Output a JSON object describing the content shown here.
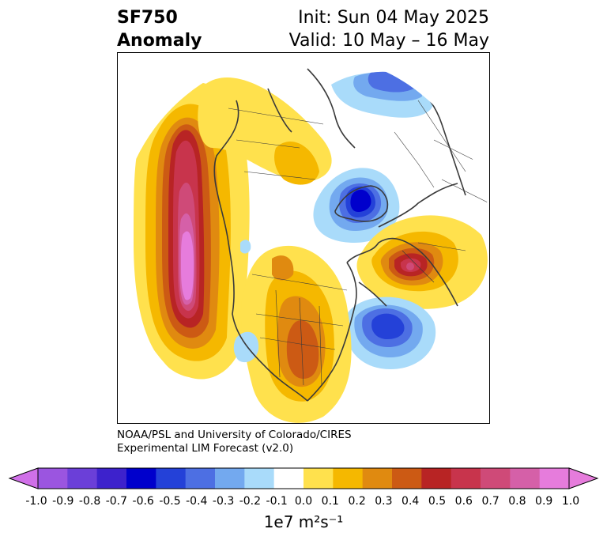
{
  "title": {
    "line1": "SF750",
    "line2": "Anomaly"
  },
  "header_right": {
    "init": "Init: Sun 04 May 2025",
    "valid": "Valid: 10 May – 16 May"
  },
  "credit": {
    "line1": "NOAA/PSL and University of Colorado/CIRES",
    "line2": "Experimental LIM Forecast (v2.0)"
  },
  "colorbar": {
    "units": "1e7 m²s⁻¹",
    "ticks": [
      "-1.0",
      "-0.9",
      "-0.8",
      "-0.7",
      "-0.6",
      "-0.5",
      "-0.4",
      "-0.3",
      "-0.2",
      "-0.1",
      "0.0",
      "0.1",
      "0.2",
      "0.3",
      "0.4",
      "0.5",
      "0.6",
      "0.7",
      "0.8",
      "0.9",
      "1.0"
    ],
    "colors": [
      "#9b55e0",
      "#6b3fd8",
      "#3d22cc",
      "#0000cc",
      "#2441d8",
      "#4d6fe3",
      "#73a9ef",
      "#a9dbfa",
      "#ffffff",
      "#ffe14d",
      "#f5b800",
      "#e08a10",
      "#cc5a14",
      "#b82424",
      "#c8344c",
      "#cf4a78",
      "#d560a8",
      "#e67cdc"
    ],
    "low_extend_color": "#d070e8",
    "high_extend_color": "#e67cdc"
  }
}
